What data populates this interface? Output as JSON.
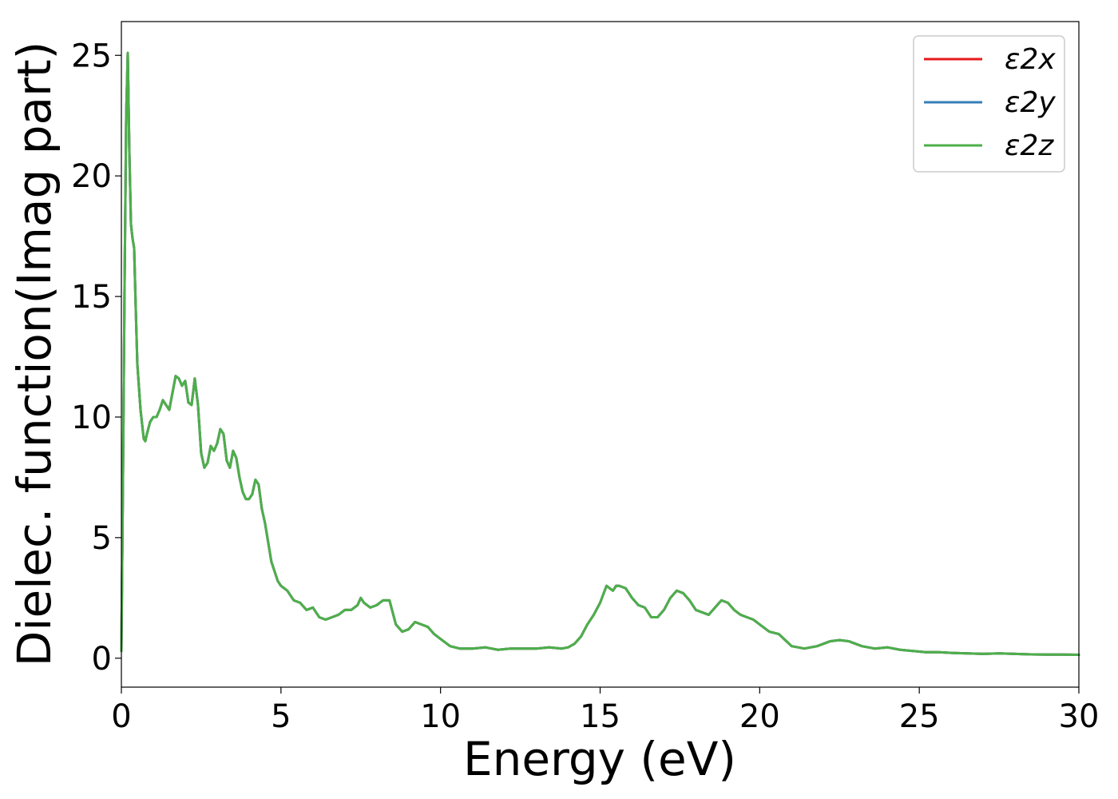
{
  "chart_data": {
    "type": "line",
    "title": "",
    "xlabel": "Energy (eV)",
    "ylabel": "Dielec. function(Imag part)",
    "xlim": [
      0,
      30
    ],
    "ylim": [
      -1.2,
      26.4
    ],
    "xticks": [
      0,
      5,
      10,
      15,
      20,
      25,
      30
    ],
    "yticks": [
      0,
      5,
      10,
      15,
      20,
      25
    ],
    "grid": false,
    "legend_position": "top-right",
    "series": [
      {
        "name": "ε2x",
        "color": "#e41a1c"
      },
      {
        "name": "ε2y",
        "color": "#377eb8"
      },
      {
        "name": "ε2z",
        "color": "#4daf4a"
      }
    ],
    "x": [
      0,
      0.05,
      0.1,
      0.15,
      0.2,
      0.25,
      0.3,
      0.35,
      0.4,
      0.45,
      0.5,
      0.6,
      0.7,
      0.75,
      0.8,
      0.9,
      1.0,
      1.1,
      1.2,
      1.3,
      1.4,
      1.5,
      1.6,
      1.7,
      1.8,
      1.9,
      2.0,
      2.1,
      2.2,
      2.3,
      2.4,
      2.5,
      2.6,
      2.7,
      2.8,
      2.9,
      3.0,
      3.1,
      3.2,
      3.3,
      3.4,
      3.5,
      3.6,
      3.7,
      3.8,
      3.9,
      4.0,
      4.1,
      4.2,
      4.3,
      4.4,
      4.5,
      4.6,
      4.7,
      4.8,
      4.9,
      5.0,
      5.2,
      5.4,
      5.6,
      5.8,
      6.0,
      6.2,
      6.4,
      6.6,
      6.8,
      7.0,
      7.2,
      7.4,
      7.5,
      7.6,
      7.8,
      8.0,
      8.2,
      8.4,
      8.6,
      8.8,
      9.0,
      9.2,
      9.4,
      9.6,
      9.8,
      10.0,
      10.3,
      10.6,
      11.0,
      11.4,
      11.8,
      12.2,
      12.6,
      13.0,
      13.4,
      13.8,
      14.0,
      14.2,
      14.4,
      14.6,
      14.8,
      15.0,
      15.2,
      15.4,
      15.5,
      15.6,
      15.8,
      16.0,
      16.2,
      16.4,
      16.6,
      16.8,
      17.0,
      17.2,
      17.4,
      17.6,
      17.8,
      18.0,
      18.2,
      18.4,
      18.6,
      18.8,
      19.0,
      19.2,
      19.4,
      19.6,
      19.8,
      20.0,
      20.3,
      20.6,
      21.0,
      21.4,
      21.8,
      22.2,
      22.5,
      22.8,
      23.2,
      23.6,
      24.0,
      24.4,
      24.8,
      25.2,
      25.6,
      26.0,
      26.5,
      27.0,
      27.5,
      28.0,
      28.5,
      29.0,
      29.5,
      30.0
    ],
    "y": [
      0.3,
      7.5,
      15.5,
      22.5,
      25.1,
      21.0,
      18.0,
      17.4,
      17.0,
      14.5,
      12.2,
      10.3,
      9.1,
      9.0,
      9.3,
      9.8,
      10.0,
      10.0,
      10.3,
      10.7,
      10.5,
      10.3,
      11.0,
      11.7,
      11.6,
      11.3,
      11.5,
      10.6,
      10.5,
      11.6,
      10.5,
      8.5,
      7.9,
      8.1,
      8.8,
      8.6,
      8.9,
      9.5,
      9.3,
      8.2,
      7.9,
      8.6,
      8.3,
      7.5,
      6.9,
      6.6,
      6.6,
      6.8,
      7.4,
      7.2,
      6.2,
      5.6,
      4.8,
      4.0,
      3.6,
      3.2,
      3.0,
      2.8,
      2.4,
      2.3,
      2.0,
      2.1,
      1.7,
      1.6,
      1.7,
      1.8,
      2.0,
      2.0,
      2.2,
      2.5,
      2.3,
      2.1,
      2.2,
      2.4,
      2.4,
      1.4,
      1.1,
      1.2,
      1.5,
      1.4,
      1.3,
      1.0,
      0.8,
      0.5,
      0.4,
      0.4,
      0.45,
      0.35,
      0.4,
      0.4,
      0.4,
      0.45,
      0.4,
      0.45,
      0.6,
      0.9,
      1.4,
      1.8,
      2.3,
      3.0,
      2.8,
      3.0,
      3.0,
      2.9,
      2.5,
      2.2,
      2.1,
      1.7,
      1.7,
      2.0,
      2.5,
      2.8,
      2.7,
      2.4,
      2.0,
      1.9,
      1.8,
      2.1,
      2.4,
      2.3,
      2.0,
      1.8,
      1.7,
      1.6,
      1.4,
      1.1,
      1.0,
      0.5,
      0.4,
      0.5,
      0.7,
      0.75,
      0.7,
      0.5,
      0.4,
      0.45,
      0.35,
      0.3,
      0.25,
      0.25,
      0.22,
      0.2,
      0.18,
      0.2,
      0.18,
      0.16,
      0.15,
      0.15,
      0.14
    ]
  }
}
